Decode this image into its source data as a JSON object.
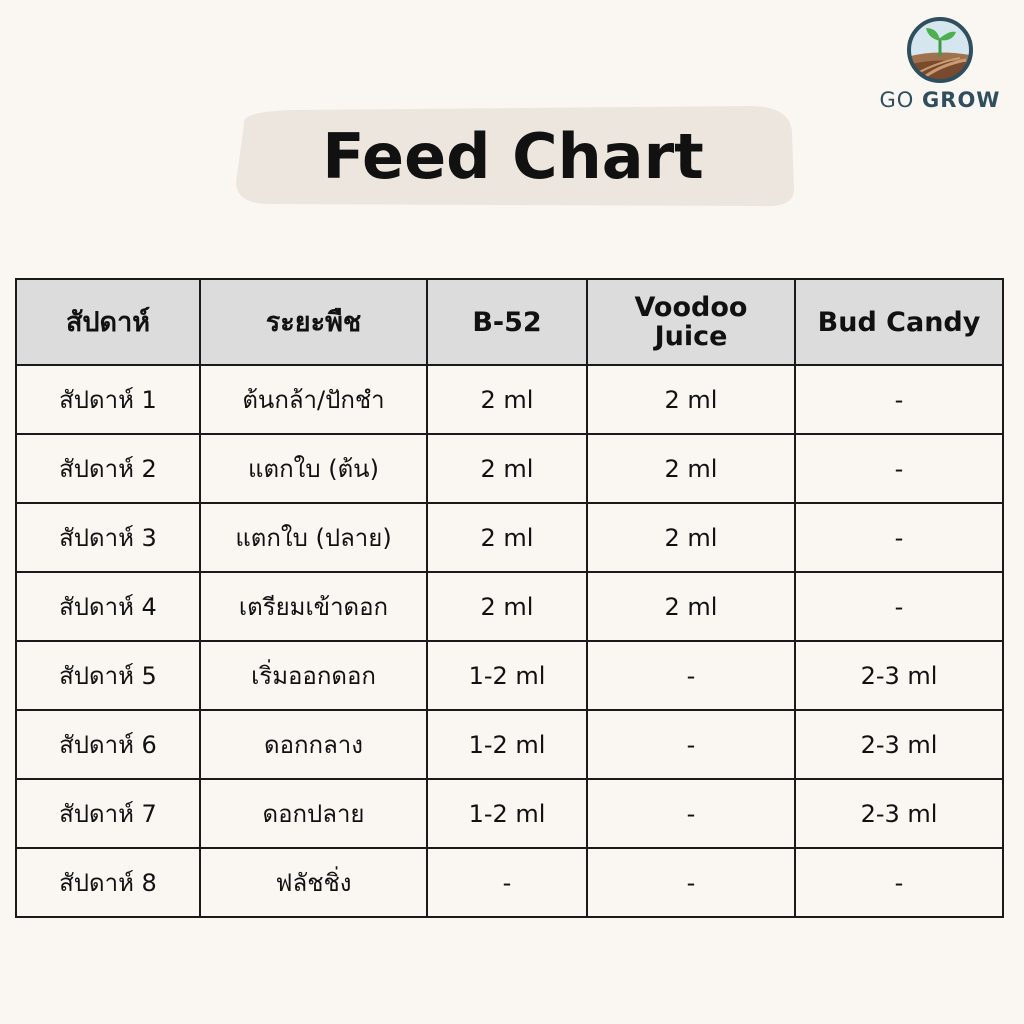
{
  "brand": {
    "word1": "GO",
    "word2": "GROW",
    "colors": {
      "sky": "#cfe0ea",
      "ring": "#2f4f5f",
      "soil": "#8b5a3c",
      "sprout": "#4caf50"
    }
  },
  "title": "Feed Chart",
  "table": {
    "headers": [
      "สัปดาห์",
      "ระยะพืช",
      "B-52",
      "Voodoo\nJuice",
      "Bud Candy"
    ],
    "rows": [
      [
        "สัปดาห์ 1",
        "ต้นกล้า/ปักชำ",
        "2 ml",
        "2 ml",
        "-"
      ],
      [
        "สัปดาห์ 2",
        "แตกใบ (ต้น)",
        "2 ml",
        "2 ml",
        "-"
      ],
      [
        "สัปดาห์ 3",
        "แตกใบ (ปลาย)",
        "2 ml",
        "2 ml",
        "-"
      ],
      [
        "สัปดาห์ 4",
        "เตรียมเข้าดอก",
        "2 ml",
        "2 ml",
        "-"
      ],
      [
        "สัปดาห์ 5",
        "เริ่มออกดอก",
        "1-2 ml",
        "-",
        "2-3 ml"
      ],
      [
        "สัปดาห์ 6",
        "ดอกกลาง",
        "1-2 ml",
        "-",
        "2-3 ml"
      ],
      [
        "สัปดาห์ 7",
        "ดอกปลาย",
        "1-2 ml",
        "-",
        "2-3 ml"
      ],
      [
        "สัปดาห์ 8",
        "ฟลัชชิ่ง",
        "-",
        "-",
        "-"
      ]
    ]
  }
}
